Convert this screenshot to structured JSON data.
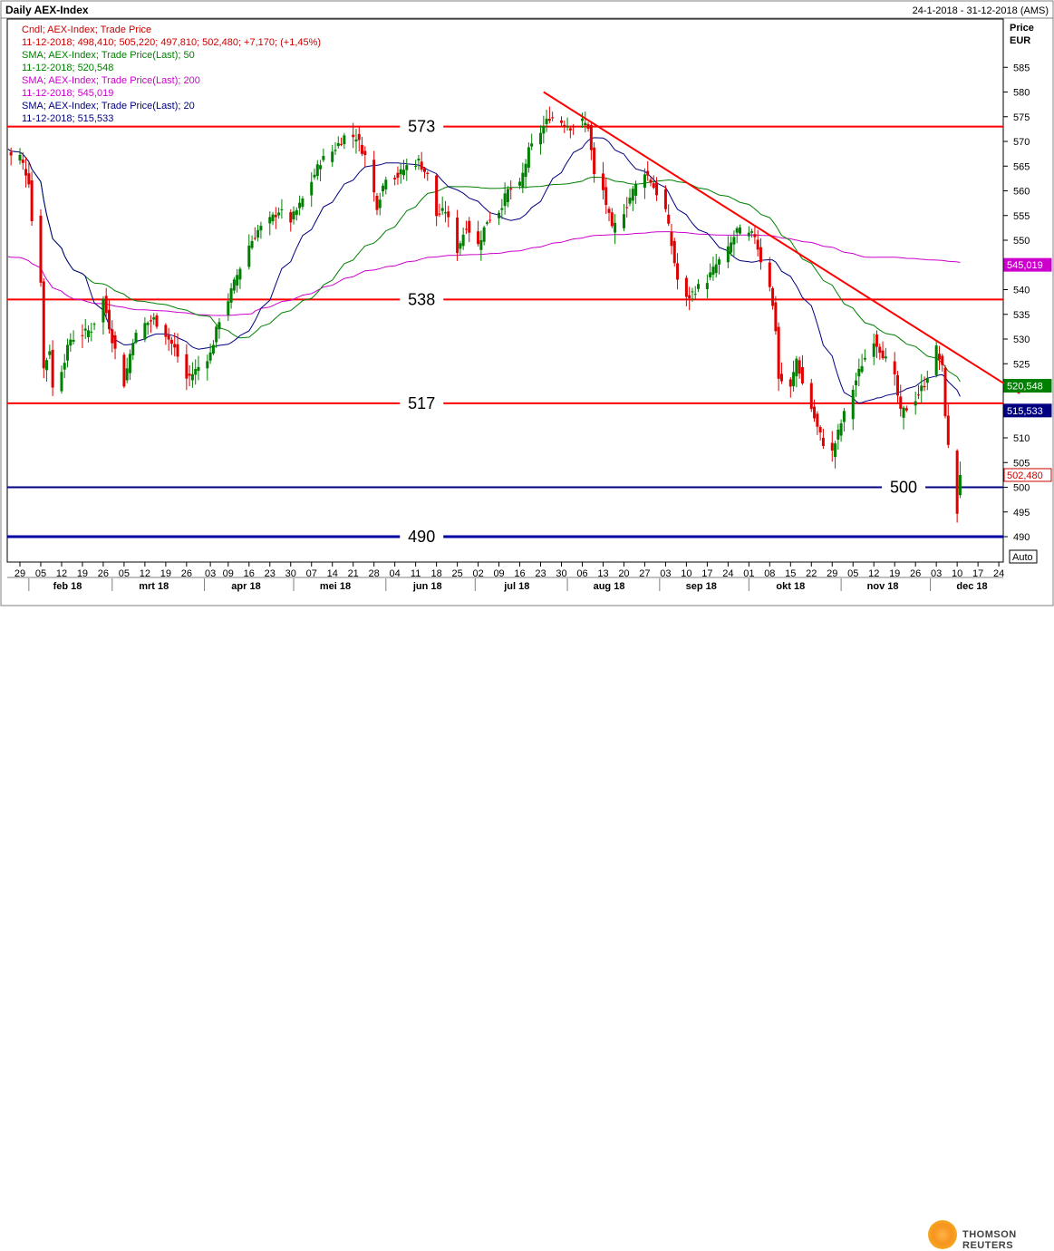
{
  "header": {
    "title": "Daily AEX-Index",
    "date_range": "24-1-2018 - 31-12-2018 (AMS)"
  },
  "legend": [
    {
      "text": "Cndl; AEX-Index; Trade Price",
      "color": "#cc0000"
    },
    {
      "text": "11-12-2018; 498,410; 505,220; 497,810; 502,480; +7,170; (+1,45%)",
      "color": "#cc0000"
    },
    {
      "text": "SMA; AEX-Index; Trade Price(Last); 50",
      "color": "#008000"
    },
    {
      "text": "11-12-2018; 520,548",
      "color": "#008000"
    },
    {
      "text": "SMA; AEX-Index; Trade Price(Last); 200",
      "color": "#cc00cc"
    },
    {
      "text": "11-12-2018; 545,019",
      "color": "#cc00cc"
    },
    {
      "text": "SMA; AEX-Index; Trade Price(Last); 20",
      "color": "#000080"
    },
    {
      "text": "11-12-2018; 515,533",
      "color": "#000080"
    }
  ],
  "axis": {
    "price_label": "Price",
    "unit_label": "EUR",
    "auto_label": "Auto"
  },
  "footer": {
    "brand": "THOMSON REUTERS"
  },
  "chart_data": {
    "type": "candlestick",
    "ylim": [
      487,
      590
    ],
    "y_ticks": [
      490,
      495,
      500,
      505,
      510,
      515,
      520,
      525,
      530,
      535,
      540,
      545,
      550,
      555,
      560,
      565,
      570,
      575,
      580,
      585
    ],
    "x_ticks": [
      {
        "date": "2018-01-29",
        "label": "29"
      },
      {
        "date": "2018-02-05",
        "label": "05"
      },
      {
        "date": "2018-02-12",
        "label": "12"
      },
      {
        "date": "2018-02-19",
        "label": "19"
      },
      {
        "date": "2018-02-26",
        "label": "26"
      },
      {
        "date": "2018-03-05",
        "label": "05"
      },
      {
        "date": "2018-03-12",
        "label": "12"
      },
      {
        "date": "2018-03-19",
        "label": "19"
      },
      {
        "date": "2018-03-26",
        "label": "26"
      },
      {
        "date": "2018-04-03",
        "label": "03"
      },
      {
        "date": "2018-04-09",
        "label": "09"
      },
      {
        "date": "2018-04-16",
        "label": "16"
      },
      {
        "date": "2018-04-23",
        "label": "23"
      },
      {
        "date": "2018-04-30",
        "label": "30"
      },
      {
        "date": "2018-05-07",
        "label": "07"
      },
      {
        "date": "2018-05-14",
        "label": "14"
      },
      {
        "date": "2018-05-21",
        "label": "21"
      },
      {
        "date": "2018-05-28",
        "label": "28"
      },
      {
        "date": "2018-06-04",
        "label": "04"
      },
      {
        "date": "2018-06-11",
        "label": "11"
      },
      {
        "date": "2018-06-18",
        "label": "18"
      },
      {
        "date": "2018-06-25",
        "label": "25"
      },
      {
        "date": "2018-07-02",
        "label": "02"
      },
      {
        "date": "2018-07-09",
        "label": "09"
      },
      {
        "date": "2018-07-16",
        "label": "16"
      },
      {
        "date": "2018-07-23",
        "label": "23"
      },
      {
        "date": "2018-07-30",
        "label": "30"
      },
      {
        "date": "2018-08-06",
        "label": "06"
      },
      {
        "date": "2018-08-13",
        "label": "13"
      },
      {
        "date": "2018-08-20",
        "label": "20"
      },
      {
        "date": "2018-08-27",
        "label": "27"
      },
      {
        "date": "2018-09-03",
        "label": "03"
      },
      {
        "date": "2018-09-10",
        "label": "10"
      },
      {
        "date": "2018-09-17",
        "label": "17"
      },
      {
        "date": "2018-09-24",
        "label": "24"
      },
      {
        "date": "2018-10-01",
        "label": "01"
      },
      {
        "date": "2018-10-08",
        "label": "08"
      },
      {
        "date": "2018-10-15",
        "label": "15"
      },
      {
        "date": "2018-10-22",
        "label": "22"
      },
      {
        "date": "2018-10-29",
        "label": "29"
      },
      {
        "date": "2018-11-05",
        "label": "05"
      },
      {
        "date": "2018-11-12",
        "label": "12"
      },
      {
        "date": "2018-11-19",
        "label": "19"
      },
      {
        "date": "2018-11-26",
        "label": "26"
      },
      {
        "date": "2018-12-03",
        "label": "03"
      },
      {
        "date": "2018-12-10",
        "label": "10"
      },
      {
        "date": "2018-12-17",
        "label": "17"
      },
      {
        "date": "2018-12-24",
        "label": "24"
      }
    ],
    "months": [
      {
        "date": "2018-02-14",
        "label": "feb 18"
      },
      {
        "date": "2018-03-15",
        "label": "mrt 18"
      },
      {
        "date": "2018-04-15",
        "label": "apr 18"
      },
      {
        "date": "2018-05-15",
        "label": "mei 18"
      },
      {
        "date": "2018-06-15",
        "label": "jun 18"
      },
      {
        "date": "2018-07-15",
        "label": "jul 18"
      },
      {
        "date": "2018-08-15",
        "label": "aug 18"
      },
      {
        "date": "2018-09-15",
        "label": "sep 18"
      },
      {
        "date": "2018-10-15",
        "label": "okt 18"
      },
      {
        "date": "2018-11-15",
        "label": "nov 18"
      },
      {
        "date": "2018-12-15",
        "label": "dec 18"
      }
    ],
    "horizontal_levels": [
      {
        "value": 573,
        "label": "573",
        "color": "#ff0000",
        "label_at": "2018-06-13"
      },
      {
        "value": 538,
        "label": "538",
        "color": "#ff0000",
        "label_at": "2018-06-13"
      },
      {
        "value": 517,
        "label": "517",
        "color": "#ff0000",
        "label_at": "2018-06-13"
      },
      {
        "value": 500,
        "label": "500",
        "color": "#000080",
        "label_at": "2018-11-22"
      },
      {
        "value": 490,
        "label": "490",
        "color": "#0000a0",
        "label_at": "2018-06-13"
      }
    ],
    "trendline": {
      "color": "#ff0000",
      "points": [
        {
          "date": "2018-07-24",
          "value": 580
        },
        {
          "date": "2018-12-31",
          "value": 519
        }
      ]
    },
    "last_values": [
      {
        "name": "SMA 200",
        "value": 545.019,
        "label": "545,019",
        "color": "#cc00cc"
      },
      {
        "name": "SMA 50",
        "value": 520.548,
        "label": "520,548",
        "color": "#008000"
      },
      {
        "name": "SMA 20",
        "value": 515.533,
        "label": "515,533",
        "color": "#000080"
      },
      {
        "name": "Cndl",
        "value": 502.48,
        "label": "502,480",
        "color": "#cc0000"
      }
    ],
    "anchors": [
      [
        "2018-01-24",
        569
      ],
      [
        "2018-01-26",
        567
      ],
      [
        "2018-01-29",
        567
      ],
      [
        "2018-02-01",
        562
      ],
      [
        "2018-02-02",
        554
      ],
      [
        "2018-02-05",
        542
      ],
      [
        "2018-02-06",
        524
      ],
      [
        "2018-02-08",
        528
      ],
      [
        "2018-02-09",
        520
      ],
      [
        "2018-02-12",
        524
      ],
      [
        "2018-02-15",
        530
      ],
      [
        "2018-02-19",
        531
      ],
      [
        "2018-02-22",
        532
      ],
      [
        "2018-02-26",
        538
      ],
      [
        "2018-03-01",
        530
      ],
      [
        "2018-03-05",
        521
      ],
      [
        "2018-03-08",
        530
      ],
      [
        "2018-03-12",
        533
      ],
      [
        "2018-03-15",
        534
      ],
      [
        "2018-03-19",
        531
      ],
      [
        "2018-03-22",
        528
      ],
      [
        "2018-03-26",
        522
      ],
      [
        "2018-03-28",
        523
      ],
      [
        "2018-04-03",
        527
      ],
      [
        "2018-04-06",
        534
      ],
      [
        "2018-04-09",
        538
      ],
      [
        "2018-04-12",
        543
      ],
      [
        "2018-04-16",
        549
      ],
      [
        "2018-04-19",
        552
      ],
      [
        "2018-04-23",
        554
      ],
      [
        "2018-04-26",
        556
      ],
      [
        "2018-04-30",
        554
      ],
      [
        "2018-05-03",
        557
      ],
      [
        "2018-05-07",
        562
      ],
      [
        "2018-05-10",
        566
      ],
      [
        "2018-05-14",
        568
      ],
      [
        "2018-05-18",
        571
      ],
      [
        "2018-05-22",
        571
      ],
      [
        "2018-05-25",
        567
      ],
      [
        "2018-05-29",
        557
      ],
      [
        "2018-06-01",
        563
      ],
      [
        "2018-06-05",
        563
      ],
      [
        "2018-06-08",
        565
      ],
      [
        "2018-06-12",
        566
      ],
      [
        "2018-06-15",
        563
      ],
      [
        "2018-06-18",
        555
      ],
      [
        "2018-06-21",
        556
      ],
      [
        "2018-06-25",
        548
      ],
      [
        "2018-06-28",
        553
      ],
      [
        "2018-07-02",
        549
      ],
      [
        "2018-07-05",
        554
      ],
      [
        "2018-07-09",
        556
      ],
      [
        "2018-07-12",
        560
      ],
      [
        "2018-07-16",
        561
      ],
      [
        "2018-07-19",
        568
      ],
      [
        "2018-07-23",
        572
      ],
      [
        "2018-07-26",
        575
      ],
      [
        "2018-07-30",
        574
      ],
      [
        "2018-08-02",
        573
      ],
      [
        "2018-08-06",
        574
      ],
      [
        "2018-08-08",
        573
      ],
      [
        "2018-08-10",
        563
      ],
      [
        "2018-08-13",
        560
      ],
      [
        "2018-08-16",
        552
      ],
      [
        "2018-08-20",
        556
      ],
      [
        "2018-08-23",
        560
      ],
      [
        "2018-08-27",
        564
      ],
      [
        "2018-08-29",
        562
      ],
      [
        "2018-09-03",
        556
      ],
      [
        "2018-09-05",
        549
      ],
      [
        "2018-09-07",
        542
      ],
      [
        "2018-09-10",
        538
      ],
      [
        "2018-09-13",
        540
      ],
      [
        "2018-09-17",
        542
      ],
      [
        "2018-09-20",
        545
      ],
      [
        "2018-09-24",
        548
      ],
      [
        "2018-09-27",
        552
      ],
      [
        "2018-10-01",
        551
      ],
      [
        "2018-10-03",
        551
      ],
      [
        "2018-10-05",
        546
      ],
      [
        "2018-10-08",
        541
      ],
      [
        "2018-10-10",
        532
      ],
      [
        "2018-10-11",
        522
      ],
      [
        "2018-10-15",
        520
      ],
      [
        "2018-10-17",
        526
      ],
      [
        "2018-10-19",
        521
      ],
      [
        "2018-10-22",
        516
      ],
      [
        "2018-10-24",
        512
      ],
      [
        "2018-10-26",
        509
      ],
      [
        "2018-10-29",
        507
      ],
      [
        "2018-11-01",
        513
      ],
      [
        "2018-11-05",
        520
      ],
      [
        "2018-11-08",
        525
      ],
      [
        "2018-11-12",
        530
      ],
      [
        "2018-11-15",
        527
      ],
      [
        "2018-11-19",
        522
      ],
      [
        "2018-11-21",
        515
      ],
      [
        "2018-11-23",
        516
      ],
      [
        "2018-11-26",
        518
      ],
      [
        "2018-11-29",
        521
      ],
      [
        "2018-12-03",
        528
      ],
      [
        "2018-12-05",
        524
      ],
      [
        "2018-12-06",
        515
      ],
      [
        "2018-12-07",
        508
      ],
      [
        "2018-12-10",
        495
      ],
      [
        "2018-12-11",
        502.48
      ]
    ]
  }
}
